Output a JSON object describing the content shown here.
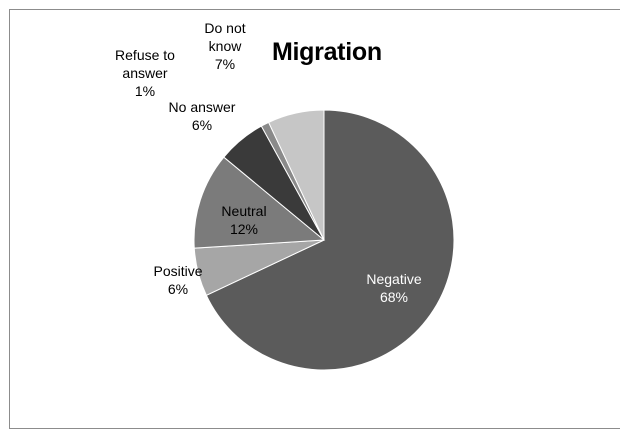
{
  "chart_data": {
    "type": "pie",
    "title": "Migration",
    "slices": [
      {
        "label": "Negative",
        "percent_label": "68%",
        "value": 68,
        "color": "#5b5b5b",
        "label_color": "#ffffff"
      },
      {
        "label": "Positive",
        "percent_label": "6%",
        "value": 6,
        "color": "#a6a6a6",
        "label_color": "#000000"
      },
      {
        "label": "Neutral",
        "percent_label": "12%",
        "value": 12,
        "color": "#7b7b7b",
        "label_color": "#000000"
      },
      {
        "label": "No answer",
        "percent_label": "6%",
        "value": 6,
        "color": "#3a3a3a",
        "label_color": "#000000"
      },
      {
        "label": "Refuse to answer",
        "percent_label": "1%",
        "value": 1,
        "color": "#8a8a8a",
        "label_color": "#000000"
      },
      {
        "label": "Do not know",
        "percent_label": "7%",
        "value": 7,
        "color": "#c6c6c6",
        "label_color": "#000000"
      }
    ]
  }
}
